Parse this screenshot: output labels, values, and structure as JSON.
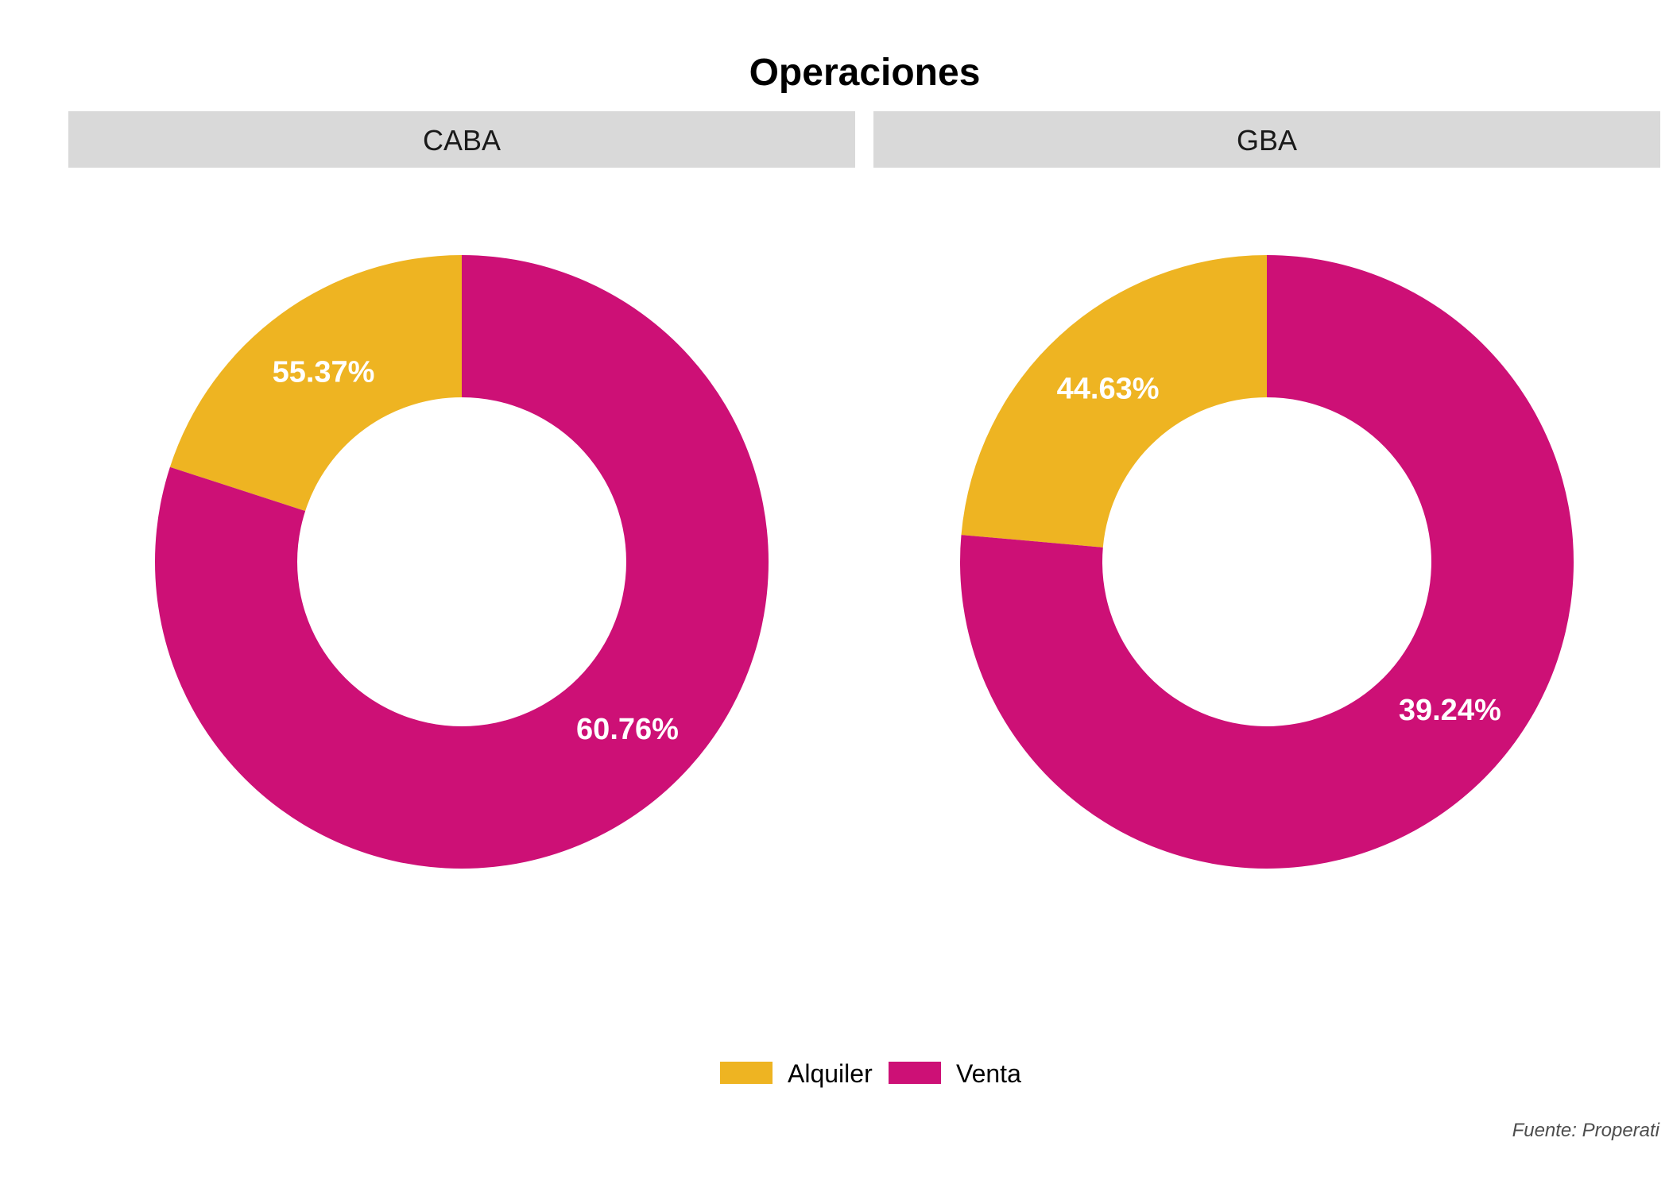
{
  "chart_data": {
    "type": "pie",
    "style": "donut",
    "title": "Operaciones",
    "caption": "Fuente: Properati",
    "legend": {
      "position": "bottom",
      "entries": [
        {
          "label": "Alquiler",
          "color": "#EEB422"
        },
        {
          "label": "Venta",
          "color": "#CD1076"
        }
      ]
    },
    "facets": [
      {
        "name": "CABA",
        "slices": [
          {
            "category": "Alquiler",
            "share": 0.2,
            "label": "55.37%"
          },
          {
            "category": "Venta",
            "share": 0.8,
            "label": "60.76%"
          }
        ]
      },
      {
        "name": "GBA",
        "slices": [
          {
            "category": "Alquiler",
            "share": 0.236,
            "label": "44.63%"
          },
          {
            "category": "Venta",
            "share": 0.764,
            "label": "39.24%"
          }
        ]
      }
    ]
  },
  "colors": {
    "strip_background": "#D9D9D9",
    "label_text": "#FFFFFF"
  }
}
